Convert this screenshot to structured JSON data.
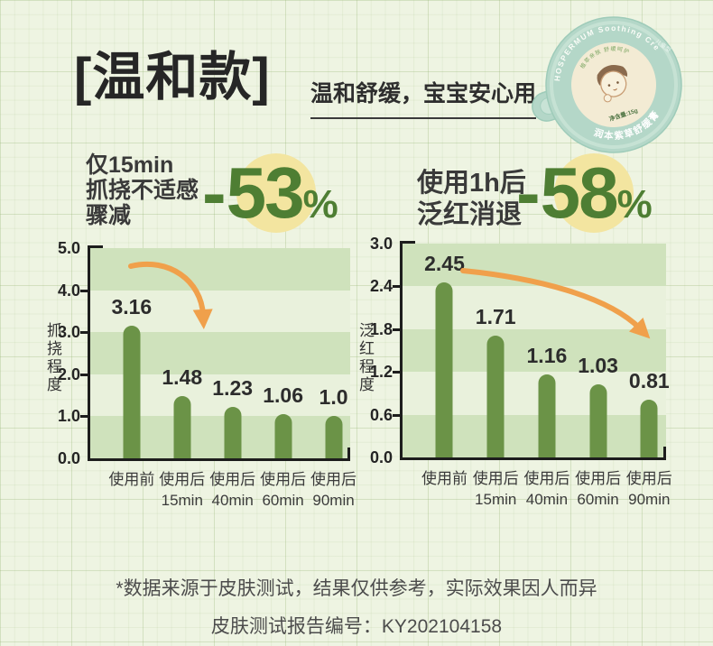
{
  "page": {
    "title": "[温和款]",
    "subtitle": "温和舒缓，宝宝安心用"
  },
  "product": {
    "arc_top": "LITHOSPERMUM Soothing Cream",
    "inner_top": "植萃亲肤 舒缓呵护",
    "net_weight": "净含量:15g",
    "arc_bottom": "润本紫草舒缓膏",
    "side_text": "儿童型",
    "clasp_text": "RUNBEN"
  },
  "stats": [
    {
      "lines": [
        "仅15min",
        "抓挠不适感",
        "骤减"
      ],
      "sign": "-",
      "number": "53",
      "unit": "%"
    },
    {
      "lines": [
        "使用1h后",
        "泛红消退"
      ],
      "sign": "-",
      "number": "58",
      "unit": "%"
    }
  ],
  "chart_data": [
    {
      "type": "bar",
      "title": "仅15min抓挠不适感骤减 -53%",
      "ylabel": "抓挠程度",
      "categories": [
        "使用前",
        "使用后15min",
        "使用后40min",
        "使用后60min",
        "使用后90min"
      ],
      "xtick_lines": [
        [
          "使用前"
        ],
        [
          "使用后",
          "15min"
        ],
        [
          "使用后",
          "40min"
        ],
        [
          "使用后",
          "60min"
        ],
        [
          "使用后",
          "90min"
        ]
      ],
      "values": [
        3.16,
        1.48,
        1.23,
        1.06,
        1.0
      ],
      "labels": [
        "3.16",
        "1.48",
        "1.23",
        "1.06",
        "1.0"
      ],
      "ytick_labels": [
        "5.0",
        "4.0",
        "3.0",
        "2.0",
        "1.0",
        "0.0"
      ],
      "ylim": [
        0,
        5
      ],
      "grid": "alternating-bands",
      "legend": "none",
      "annotation": "-53%",
      "trend_arrow": "down"
    },
    {
      "type": "bar",
      "title": "使用1h后泛红消退 -58%",
      "ylabel": "泛红程度",
      "categories": [
        "使用前",
        "使用后15min",
        "使用后40min",
        "使用后60min",
        "使用后90min"
      ],
      "xtick_lines": [
        [
          "使用前"
        ],
        [
          "使用后",
          "15min"
        ],
        [
          "使用后",
          "40min"
        ],
        [
          "使用后",
          "60min"
        ],
        [
          "使用后",
          "90min"
        ]
      ],
      "values": [
        2.45,
        1.71,
        1.16,
        1.03,
        0.81
      ],
      "labels": [
        "2.45",
        "1.71",
        "1.16",
        "1.03",
        "0.81"
      ],
      "ytick_labels": [
        "3.0",
        "2.4",
        "1.8",
        "1.2",
        "0.6",
        "0.0"
      ],
      "ylim": [
        0,
        3
      ],
      "grid": "alternating-bands",
      "legend": "none",
      "annotation": "-58%",
      "trend_arrow": "down"
    }
  ],
  "footer": {
    "line1": "*数据来源于皮肤测试，结果仅供参考，实际效果因人而异",
    "line2": "皮肤测试报告编号：KY202104158"
  },
  "colors": {
    "accent_green": "#4e7e33",
    "bar_green": "#6b9347",
    "band_dark": "#cfe2bc",
    "band_light": "#e9f1dc",
    "halo_yellow": "#f3e5a0",
    "arrow_orange": "#f0a04b",
    "axis": "#1d1d1d",
    "tin_mint": "#b4d7c8",
    "label_cream": "#f3ebd4"
  }
}
